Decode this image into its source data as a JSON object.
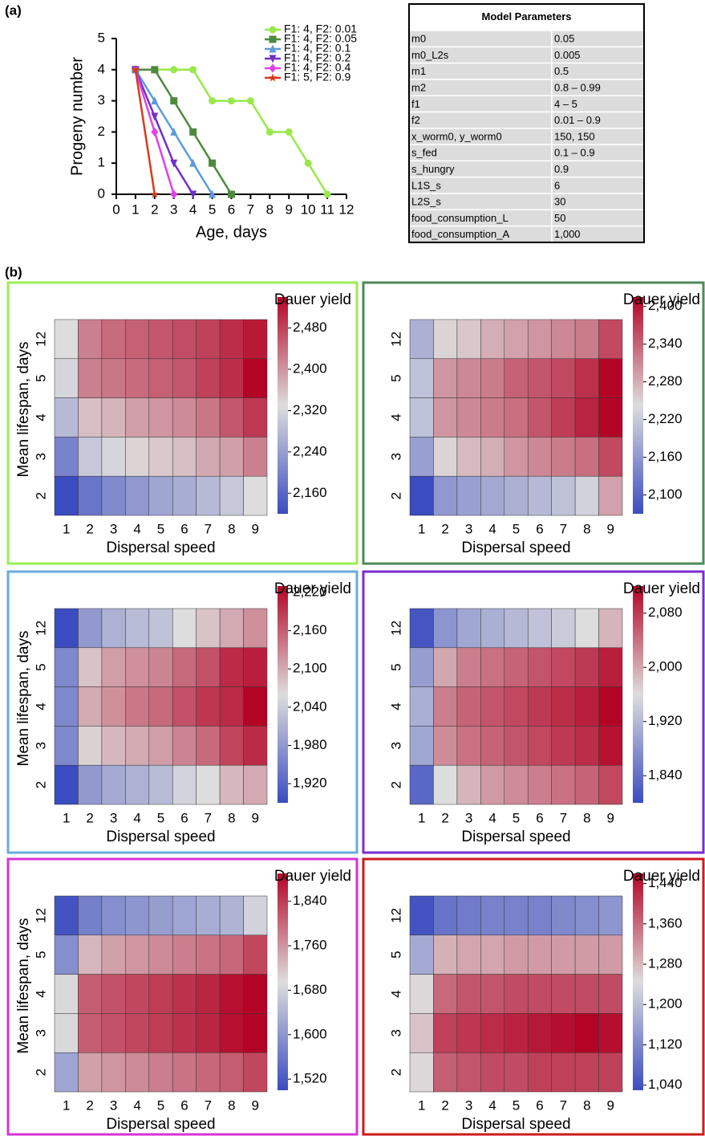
{
  "panel_labels": [
    "(a)",
    "(b)"
  ],
  "table": {
    "title": "Model Parameters",
    "rows": [
      [
        "m0",
        "0.05"
      ],
      [
        "m0_L2s",
        "0.005"
      ],
      [
        "m1",
        "0.5"
      ],
      [
        "m2",
        "0.8 – 0.99"
      ],
      [
        "f1",
        "4 – 5"
      ],
      [
        "f2",
        "0.01 – 0.9"
      ],
      [
        "x_worm0, y_worm0",
        "150, 150"
      ],
      [
        "s_fed",
        "0.1 – 0.9"
      ],
      [
        "s_hungry",
        "0.9"
      ],
      [
        "L1S_s",
        "6"
      ],
      [
        "L2S_s",
        "30"
      ],
      [
        "food_consumption_L",
        "50"
      ],
      [
        "food_consumption_A",
        "1,000"
      ]
    ]
  },
  "chart_data": [
    {
      "type": "line",
      "xlabel": "Age, days",
      "ylabel": "Progeny number",
      "x": [
        1,
        2,
        3,
        4,
        5,
        6,
        7,
        8,
        9,
        10,
        11
      ],
      "xlim": [
        0,
        12
      ],
      "xticks": [
        0,
        1,
        2,
        3,
        4,
        5,
        6,
        7,
        8,
        9,
        10,
        11,
        12
      ],
      "ylim": [
        0,
        5
      ],
      "yticks": [
        0,
        1,
        2,
        3,
        4,
        5
      ],
      "series": [
        {
          "name": "F1: 4, F2: 0.01",
          "color": "#99e84a",
          "marker": "circle",
          "values": [
            4,
            4,
            4,
            4,
            3,
            3,
            3,
            2,
            2,
            1,
            0
          ]
        },
        {
          "name": "F1: 4, F2: 0.05",
          "color": "#4e8a3e",
          "marker": "square",
          "values": [
            4,
            4,
            3,
            2,
            1,
            0,
            null,
            null,
            null,
            null,
            null
          ]
        },
        {
          "name": "F1: 4, F2: 0.1",
          "color": "#5b9bdc",
          "marker": "triangle-up",
          "values": [
            4,
            3,
            2,
            1,
            0,
            null,
            null,
            null,
            null,
            null,
            null
          ]
        },
        {
          "name": "F1: 4, F2: 0.2",
          "color": "#7030c8",
          "marker": "triangle-down",
          "values": [
            4,
            2.5,
            1,
            0,
            null,
            null,
            null,
            null,
            null,
            null,
            null
          ]
        },
        {
          "name": "F1: 4, F2: 0.4",
          "color": "#e040e8",
          "marker": "diamond",
          "values": [
            4,
            2,
            0,
            null,
            null,
            null,
            null,
            null,
            null,
            null,
            null
          ]
        },
        {
          "name": "F1: 5, F2: 0.9",
          "color": "#d83a1e",
          "marker": "star",
          "values": [
            4,
            0,
            null,
            null,
            null,
            null,
            null,
            null,
            null,
            null,
            null
          ]
        }
      ]
    },
    {
      "type": "heatmap",
      "border_color": "#99ee55",
      "colorbar_label": "Dauer yield",
      "xlabel": "Dispersal speed",
      "ylabel": "Mean lifespan, days",
      "categories": [
        "1",
        "2",
        "3",
        "4",
        "5",
        "6",
        "7",
        "8",
        "9"
      ],
      "y_categories": [
        "12",
        "5",
        "4",
        "3",
        "2"
      ],
      "colormap": [
        "#3b4cc0",
        "#dddddd",
        "#b40426"
      ],
      "clim": [
        2120,
        2540
      ],
      "cticks": [
        {
          "value": 2160,
          "label": "2,160"
        },
        {
          "value": 2240,
          "label": "2,240"
        },
        {
          "value": 2320,
          "label": "2,320"
        },
        {
          "value": 2400,
          "label": "2,400"
        },
        {
          "value": 2480,
          "label": "2,480"
        }
      ],
      "values": [
        [
          2330,
          2420,
          2440,
          2450,
          2460,
          2470,
          2480,
          2500,
          2520
        ],
        [
          2320,
          2420,
          2430,
          2440,
          2450,
          2460,
          2480,
          2500,
          2540
        ],
        [
          2280,
          2360,
          2370,
          2390,
          2400,
          2410,
          2430,
          2460,
          2490
        ],
        [
          2200,
          2300,
          2320,
          2340,
          2350,
          2360,
          2380,
          2390,
          2420
        ],
        [
          2120,
          2180,
          2210,
          2230,
          2250,
          2260,
          2280,
          2300,
          2330
        ]
      ]
    },
    {
      "type": "heatmap",
      "border_color": "#4e8a5a",
      "colorbar_label": "Dauer yield",
      "xlabel": "Dispersal speed",
      "categories": [
        "1",
        "2",
        "3",
        "4",
        "5",
        "6",
        "7",
        "8",
        "9"
      ],
      "y_categories": [
        "12",
        "5",
        "4",
        "3",
        "2"
      ],
      "colormap": [
        "#3b4cc0",
        "#dddddd",
        "#b40426"
      ],
      "clim": [
        2070,
        2415
      ],
      "cticks": [
        {
          "value": 2100,
          "label": "2,100"
        },
        {
          "value": 2160,
          "label": "2,160"
        },
        {
          "value": 2220,
          "label": "2,220"
        },
        {
          "value": 2280,
          "label": "2,280"
        },
        {
          "value": 2340,
          "label": "2,340"
        },
        {
          "value": 2400,
          "label": "2,400"
        }
      ],
      "values": [
        [
          2190,
          2250,
          2260,
          2280,
          2290,
          2300,
          2310,
          2320,
          2360
        ],
        [
          2210,
          2300,
          2310,
          2320,
          2340,
          2350,
          2360,
          2380,
          2415
        ],
        [
          2210,
          2300,
          2310,
          2320,
          2330,
          2350,
          2370,
          2390,
          2415
        ],
        [
          2170,
          2250,
          2270,
          2280,
          2300,
          2310,
          2320,
          2330,
          2360
        ],
        [
          2070,
          2160,
          2170,
          2180,
          2190,
          2200,
          2210,
          2230,
          2290
        ]
      ]
    },
    {
      "type": "heatmap",
      "border_color": "#6aabdc",
      "colorbar_label": "Dauer yield",
      "xlabel": "Dispersal speed",
      "ylabel": "Mean lifespan, days",
      "categories": [
        "1",
        "2",
        "3",
        "4",
        "5",
        "6",
        "7",
        "8",
        "9"
      ],
      "y_categories": [
        "12",
        "5",
        "4",
        "3",
        "2"
      ],
      "colormap": [
        "#3b4cc0",
        "#dddddd",
        "#b40426"
      ],
      "clim": [
        1890,
        2230
      ],
      "cticks": [
        {
          "value": 1920,
          "label": "1,920"
        },
        {
          "value": 1980,
          "label": "1,980"
        },
        {
          "value": 2040,
          "label": "2,040"
        },
        {
          "value": 2100,
          "label": "2,100"
        },
        {
          "value": 2160,
          "label": "2,160"
        },
        {
          "value": 2220,
          "label": "2,220"
        }
      ],
      "values": [
        [
          1890,
          1980,
          2010,
          2020,
          2030,
          2060,
          2080,
          2100,
          2120
        ],
        [
          1960,
          2080,
          2110,
          2120,
          2130,
          2150,
          2170,
          2200,
          2210
        ],
        [
          1960,
          2100,
          2120,
          2140,
          2150,
          2170,
          2190,
          2200,
          2230
        ],
        [
          1960,
          2070,
          2090,
          2100,
          2110,
          2130,
          2150,
          2180,
          2200
        ],
        [
          1890,
          1980,
          2000,
          2010,
          2020,
          2050,
          2060,
          2090,
          2100
        ]
      ]
    },
    {
      "type": "heatmap",
      "border_color": "#7a2cd0",
      "colorbar_label": "Dauer yield",
      "xlabel": "Dispersal speed",
      "categories": [
        "1",
        "2",
        "3",
        "4",
        "5",
        "6",
        "7",
        "8",
        "9"
      ],
      "y_categories": [
        "12",
        "5",
        "4",
        "3",
        "2"
      ],
      "colormap": [
        "#3b4cc0",
        "#dddddd",
        "#b40426"
      ],
      "clim": [
        1800,
        2120
      ],
      "cticks": [
        {
          "value": 1840,
          "label": "1,840"
        },
        {
          "value": 1920,
          "label": "1,920"
        },
        {
          "value": 2000,
          "label": "2,000"
        },
        {
          "value": 2080,
          "label": "2,080"
        }
      ],
      "values": [
        [
          1810,
          1880,
          1900,
          1910,
          1920,
          1930,
          1940,
          1960,
          1990
        ],
        [
          1890,
          2000,
          2030,
          2040,
          2050,
          2060,
          2070,
          2080,
          2100
        ],
        [
          1910,
          2030,
          2050,
          2060,
          2070,
          2080,
          2090,
          2100,
          2120
        ],
        [
          1900,
          2020,
          2040,
          2050,
          2060,
          2070,
          2080,
          2090,
          2110
        ],
        [
          1830,
          1960,
          1990,
          2010,
          2020,
          2030,
          2040,
          2050,
          2070
        ]
      ]
    },
    {
      "type": "heatmap",
      "border_color": "#d633d6",
      "colorbar_label": "Dauer yield",
      "xlabel": "Dispersal speed",
      "ylabel": "Mean lifespan, days",
      "categories": [
        "1",
        "2",
        "3",
        "4",
        "5",
        "6",
        "7",
        "8",
        "9"
      ],
      "y_categories": [
        "12",
        "5",
        "4",
        "3",
        "2"
      ],
      "colormap": [
        "#3b4cc0",
        "#dddddd",
        "#b40426"
      ],
      "clim": [
        1500,
        1890
      ],
      "cticks": [
        {
          "value": 1520,
          "label": "1,520"
        },
        {
          "value": 1600,
          "label": "1,600"
        },
        {
          "value": 1680,
          "label": "1,680"
        },
        {
          "value": 1760,
          "label": "1,760"
        },
        {
          "value": 1840,
          "label": "1,840"
        }
      ],
      "values": [
        [
          1510,
          1570,
          1590,
          1600,
          1610,
          1620,
          1630,
          1640,
          1680
        ],
        [
          1590,
          1730,
          1750,
          1760,
          1770,
          1780,
          1790,
          1800,
          1830
        ],
        [
          1690,
          1810,
          1820,
          1830,
          1840,
          1850,
          1860,
          1880,
          1890
        ],
        [
          1690,
          1810,
          1820,
          1830,
          1840,
          1850,
          1860,
          1880,
          1890
        ],
        [
          1620,
          1750,
          1760,
          1770,
          1780,
          1790,
          1800,
          1810,
          1830
        ]
      ]
    },
    {
      "type": "heatmap",
      "border_color": "#cc1a1a",
      "colorbar_label": "Dauer yield",
      "xlabel": "Dispersal speed",
      "categories": [
        "1",
        "2",
        "3",
        "4",
        "5",
        "6",
        "7",
        "8",
        "9"
      ],
      "y_categories": [
        "12",
        "5",
        "4",
        "3",
        "2"
      ],
      "colormap": [
        "#3b4cc0",
        "#dddddd",
        "#b40426"
      ],
      "clim": [
        1030,
        1460
      ],
      "cticks": [
        {
          "value": 1040,
          "label": "1,040"
        },
        {
          "value": 1120,
          "label": "1,120"
        },
        {
          "value": 1200,
          "label": "1,200"
        },
        {
          "value": 1280,
          "label": "1,280"
        },
        {
          "value": 1360,
          "label": "1,360"
        },
        {
          "value": 1440,
          "label": "1,440"
        }
      ],
      "values": [
        [
          1040,
          1090,
          1100,
          1110,
          1110,
          1110,
          1120,
          1130,
          1140
        ],
        [
          1170,
          1290,
          1300,
          1300,
          1310,
          1310,
          1310,
          1310,
          1310
        ],
        [
          1250,
          1360,
          1380,
          1380,
          1390,
          1390,
          1390,
          1390,
          1390
        ],
        [
          1270,
          1400,
          1410,
          1420,
          1430,
          1440,
          1450,
          1460,
          1450
        ],
        [
          1250,
          1370,
          1380,
          1390,
          1390,
          1400,
          1400,
          1400,
          1400
        ]
      ]
    }
  ]
}
